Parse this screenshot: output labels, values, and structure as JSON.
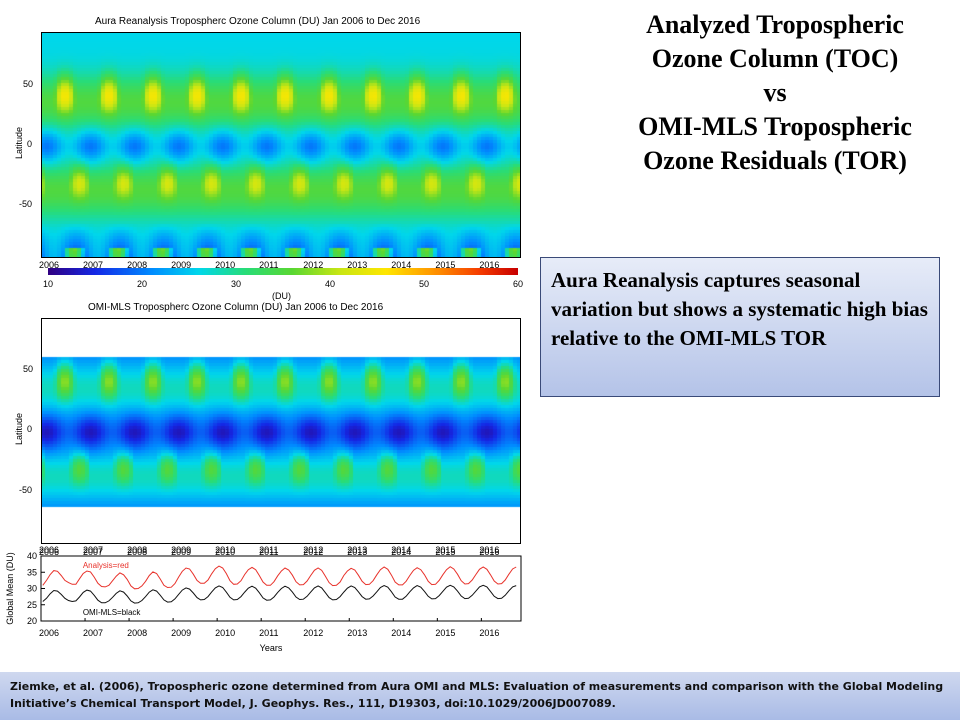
{
  "slide": {
    "title_lines": [
      "Analyzed Tropospheric",
      "Ozone Column (TOC)",
      "vs",
      "OMI-MLS Tropospheric",
      "Ozone Residuals (TOR)"
    ],
    "callout": "Aura Reanalysis captures seasonal variation but shows a systematic high bias relative to the OMI-MLS TOR",
    "footer": "Ziemke, et al. (2006), Tropospheric ozone determined from Aura OMI and MLS: Evaluation of measurements and comparison with the Global Modeling Initiative’s Chemical Transport Model, J. Geophys. Res., 111, D19303, doi:10.1029/2006JD007089."
  },
  "chart_data": [
    {
      "type": "heatmap",
      "title": "Aura Reanalysis  Tropospherc Ozone Column (DU)        Jan 2006 to Dec 2016",
      "ylabel": "Latitude",
      "y_ticks": [
        "50",
        "0",
        "-50"
      ],
      "x_ticks": [
        "2006",
        "2007",
        "2008",
        "2009",
        "2010",
        "2011",
        "2012",
        "2013",
        "2014",
        "2015",
        "2016"
      ],
      "x_range": [
        2006,
        2016.9
      ],
      "y_range": [
        -90,
        90
      ],
      "lat_coverage": [
        -90,
        90
      ],
      "value_offset": 0,
      "colorbar": {
        "label": "(DU)",
        "ticks": [
          "10",
          "20",
          "30",
          "40",
          "50",
          "60"
        ],
        "range": [
          10,
          60
        ]
      }
    },
    {
      "type": "heatmap",
      "title": "OMI-MLS  Tropospherc Ozone Column (DU)        Jan 2006 to Dec 2016",
      "ylabel": "Latitude",
      "y_ticks": [
        "50",
        "0",
        "-50"
      ],
      "x_ticks": [
        "2006",
        "2007",
        "2008",
        "2009",
        "2010",
        "2011",
        "2012",
        "2013",
        "2014",
        "2015",
        "2016"
      ],
      "x_range": [
        2006,
        2016.9
      ],
      "y_range": [
        -90,
        90
      ],
      "lat_coverage": [
        -60,
        60
      ],
      "value_offset": -7
    },
    {
      "type": "line",
      "ylabel": "Global Mean (DU)",
      "xlabel": "Years",
      "x_ticks": [
        "2006",
        "2007",
        "2008",
        "2009",
        "2010",
        "2011",
        "2012",
        "2013",
        "2014",
        "2015",
        "2016"
      ],
      "y_ticks": [
        "40",
        "35",
        "30",
        "25",
        "20"
      ],
      "xlim": [
        2006,
        2016.9
      ],
      "ylim": [
        20,
        40
      ],
      "series": [
        {
          "name": "Analysis=red",
          "color": "#e8322b",
          "values": [
            31.0,
            32.5,
            34.3,
            35.5,
            35.3,
            34.0,
            32.5,
            31.8,
            31.3,
            31.3,
            33.0,
            34.6,
            35.4,
            35.1,
            33.5,
            31.6,
            30.6,
            30.5,
            31.0,
            32.4,
            33.8,
            34.8,
            34.2,
            32.8,
            30.8,
            29.9,
            30.0,
            30.8,
            32.2,
            34.0,
            35.1,
            34.6,
            32.9,
            31.0,
            30.3,
            30.4,
            31.5,
            33.5,
            35.3,
            36.3,
            36.0,
            34.4,
            32.5,
            31.6,
            31.6,
            32.6,
            34.5,
            36.1,
            36.9,
            36.3,
            34.6,
            32.4,
            31.3,
            31.4,
            32.4,
            34.3,
            35.8,
            36.5,
            35.8,
            34.0,
            32.0,
            31.0,
            31.0,
            32.1,
            33.9,
            35.4,
            36.3,
            35.7,
            34.1,
            32.1,
            31.1,
            31.2,
            32.3,
            34.0,
            35.6,
            36.3,
            35.6,
            33.8,
            31.8,
            30.9,
            31.0,
            32.0,
            34.0,
            35.4,
            36.2,
            35.7,
            34.1,
            32.2,
            31.2,
            31.3,
            32.4,
            34.2,
            35.8,
            36.6,
            35.9,
            34.1,
            32.0,
            31.1,
            31.1,
            32.2,
            34.0,
            35.6,
            36.4,
            35.8,
            34.2,
            32.2,
            31.2,
            31.3,
            32.5,
            34.2,
            35.8,
            36.7,
            36.0,
            34.4,
            32.4,
            31.4,
            31.5,
            32.6,
            34.3,
            35.9,
            36.6,
            35.9,
            34.2,
            32.3,
            31.4,
            31.5,
            32.6,
            34.4,
            36.0,
            36.6
          ]
        },
        {
          "name": "OMI-MLS=black",
          "color": "#111111",
          "values": [
            26.0,
            27.0,
            28.4,
            29.4,
            29.2,
            28.2,
            27.0,
            26.3,
            26.0,
            26.2,
            27.4,
            28.8,
            29.5,
            29.2,
            27.9,
            26.4,
            25.6,
            25.6,
            26.2,
            27.3,
            28.5,
            29.3,
            28.9,
            27.7,
            26.2,
            25.5,
            25.6,
            26.3,
            27.5,
            28.9,
            29.6,
            29.2,
            27.9,
            26.5,
            25.8,
            25.9,
            26.8,
            28.2,
            29.5,
            30.2,
            29.8,
            28.6,
            27.2,
            26.5,
            26.6,
            27.5,
            28.9,
            30.2,
            30.8,
            30.3,
            28.9,
            27.3,
            26.5,
            26.6,
            27.5,
            28.9,
            30.1,
            30.7,
            30.1,
            28.7,
            27.1,
            26.4,
            26.5,
            27.4,
            28.8,
            30.0,
            30.7,
            30.2,
            28.9,
            27.4,
            26.6,
            26.7,
            27.6,
            28.9,
            30.2,
            30.8,
            30.2,
            28.7,
            27.2,
            26.5,
            26.6,
            27.5,
            28.9,
            30.1,
            30.8,
            30.3,
            29.0,
            27.5,
            26.7,
            26.8,
            27.7,
            29.0,
            30.3,
            30.9,
            30.4,
            29.0,
            27.4,
            26.7,
            26.7,
            27.6,
            29.0,
            30.2,
            30.9,
            30.4,
            29.1,
            27.6,
            26.8,
            26.9,
            27.8,
            29.1,
            30.4,
            31.0,
            30.5,
            29.2,
            27.7,
            26.9,
            27.0,
            27.9,
            29.2,
            30.5,
            31.0,
            30.5,
            29.1,
            27.6,
            26.9,
            27.0,
            27.9,
            29.3,
            30.5,
            30.9
          ]
        }
      ]
    }
  ]
}
